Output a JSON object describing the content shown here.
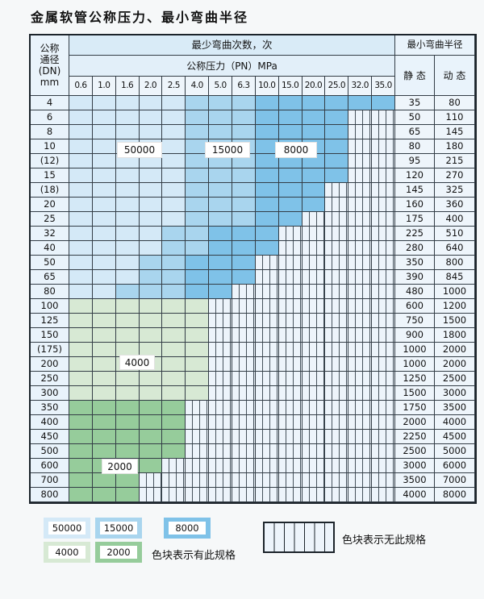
{
  "title": "金属软管公称压力、最小弯曲半径",
  "table": {
    "header": {
      "dn_lines": [
        "公称",
        "通径",
        "(DN)",
        "mm"
      ],
      "cycles_label": "最少弯曲次数，次",
      "pn_label": "公称压力（PN）MPa",
      "radius_label": "最小弯曲半径",
      "static_label": "静 态",
      "dynamic_label": "动 态",
      "pressures": [
        "0.6",
        "1.0",
        "1.6",
        "2.0",
        "2.5",
        "4.0",
        "5.0",
        "6.3",
        "10.0",
        "15.0",
        "20.0",
        "25.0",
        "32.0",
        "35.0"
      ]
    },
    "cell_legend_map": {
      "1": "50000",
      "2": "15000",
      "3": "8000",
      "4": "4000",
      "5": "2000",
      "0": "no-spec-hatched"
    },
    "rows": [
      {
        "dn": "4",
        "cells": "11111222333333",
        "static": "35",
        "dynamic": "80"
      },
      {
        "dn": "6",
        "cells": "11111222333300",
        "static": "50",
        "dynamic": "110"
      },
      {
        "dn": "8",
        "cells": "11111222333300",
        "static": "65",
        "dynamic": "145"
      },
      {
        "dn": "10",
        "cells": "11111222333300",
        "static": "80",
        "dynamic": "180"
      },
      {
        "dn": "(12)",
        "cells": "11111222333300",
        "static": "95",
        "dynamic": "215"
      },
      {
        "dn": "15",
        "cells": "11111222333300",
        "static": "120",
        "dynamic": "270"
      },
      {
        "dn": "(18)",
        "cells": "11111222333000",
        "static": "145",
        "dynamic": "325"
      },
      {
        "dn": "20",
        "cells": "11111222333000",
        "static": "160",
        "dynamic": "360"
      },
      {
        "dn": "25",
        "cells": "11111222330000",
        "static": "175",
        "dynamic": "400"
      },
      {
        "dn": "32",
        "cells": "11112233300000",
        "static": "225",
        "dynamic": "510"
      },
      {
        "dn": "40",
        "cells": "11112233300000",
        "static": "280",
        "dynamic": "640"
      },
      {
        "dn": "50",
        "cells": "11122333000000",
        "static": "350",
        "dynamic": "800"
      },
      {
        "dn": "65",
        "cells": "11122333000000",
        "static": "390",
        "dynamic": "845"
      },
      {
        "dn": "80",
        "cells": "11222330000000",
        "static": "480",
        "dynamic": "1000"
      },
      {
        "dn": "100",
        "cells": "44444400000000",
        "static": "600",
        "dynamic": "1200"
      },
      {
        "dn": "125",
        "cells": "44444400000000",
        "static": "750",
        "dynamic": "1500"
      },
      {
        "dn": "150",
        "cells": "44444400000000",
        "static": "900",
        "dynamic": "1800"
      },
      {
        "dn": "(175)",
        "cells": "44444400000000",
        "static": "1000",
        "dynamic": "2000"
      },
      {
        "dn": "200",
        "cells": "44444400000000",
        "static": "1000",
        "dynamic": "2000"
      },
      {
        "dn": "250",
        "cells": "44444400000000",
        "static": "1250",
        "dynamic": "2500"
      },
      {
        "dn": "300",
        "cells": "44444400000000",
        "static": "1500",
        "dynamic": "3000"
      },
      {
        "dn": "350",
        "cells": "55555000000000",
        "static": "1750",
        "dynamic": "3500"
      },
      {
        "dn": "400",
        "cells": "55555000000000",
        "static": "2000",
        "dynamic": "4000"
      },
      {
        "dn": "450",
        "cells": "55555000000000",
        "static": "2250",
        "dynamic": "4500"
      },
      {
        "dn": "500",
        "cells": "55555000000000",
        "static": "2500",
        "dynamic": "5000"
      },
      {
        "dn": "600",
        "cells": "55550000000000",
        "static": "3000",
        "dynamic": "6000"
      },
      {
        "dn": "700",
        "cells": "55500000000000",
        "static": "3500",
        "dynamic": "7000"
      },
      {
        "dn": "800",
        "cells": "55500000000000",
        "static": "4000",
        "dynamic": "8000"
      }
    ],
    "overlay_labels": {
      "l50000": "50000",
      "l15000": "15000",
      "l8000": "8000",
      "l4000": "4000",
      "l2000": "2000"
    }
  },
  "legend": {
    "items": [
      {
        "label": "50000",
        "color": "#d4e9f7"
      },
      {
        "label": "15000",
        "color": "#a9d5ee"
      },
      {
        "label": "8000",
        "color": "#7fc2e8"
      },
      {
        "label": "4000",
        "color": "#d7e9d4"
      },
      {
        "label": "2000",
        "color": "#96cc9b"
      }
    ],
    "has_spec_text": "色块表示有此规格",
    "no_spec_text": "色块表示无此规格"
  },
  "colors": {
    "blue_50000": "#d4e9f7",
    "blue_15000": "#a9d5ee",
    "blue_8000": "#7fc2e8",
    "green_4000": "#d7e9d4",
    "green_2000": "#96cc9b",
    "hatch_bg": "#edf4fb",
    "grid_line": "#333d46",
    "header_bg": "#e9f3fb"
  }
}
